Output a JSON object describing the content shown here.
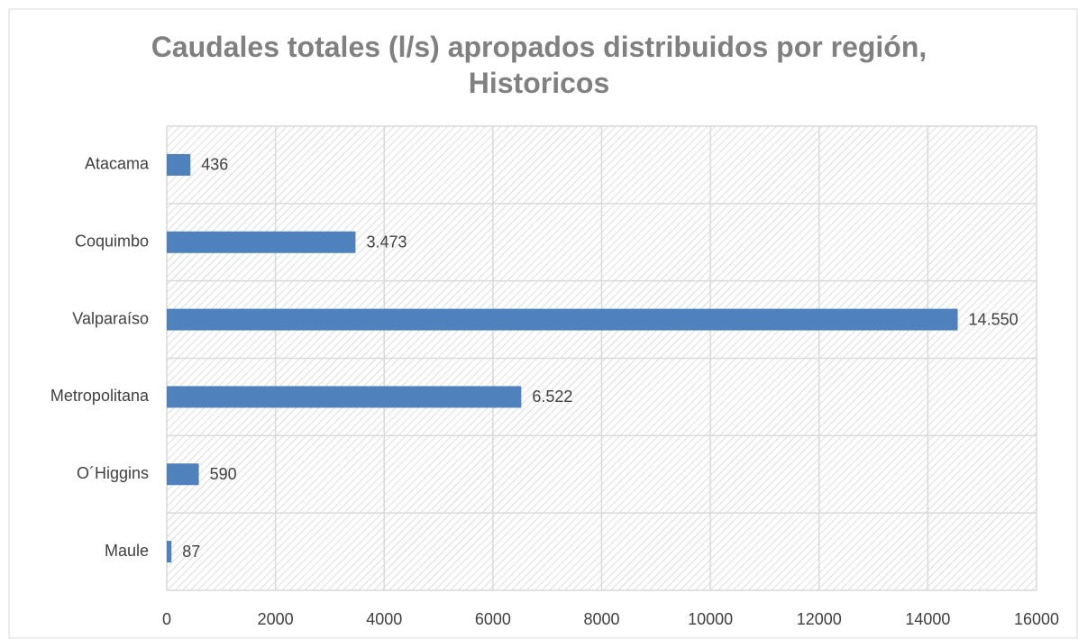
{
  "chart_data": {
    "type": "barh",
    "title": "Caudales totales (l/s) apropados distribuidos por región, Historicos",
    "categories": [
      "Atacama",
      "Coquimbo",
      "Valparaíso",
      "Metropolitana",
      "O´Higgins",
      "Maule"
    ],
    "values": [
      436,
      3473,
      14550,
      6522,
      590,
      87
    ],
    "value_labels": [
      "436",
      "3.473",
      "14.550",
      "6.522",
      "590",
      "87"
    ],
    "color": "#4f81bd",
    "xlim": [
      0,
      16000
    ],
    "xticks": [
      0,
      2000,
      4000,
      6000,
      8000,
      10000,
      12000,
      14000,
      16000
    ],
    "grid": true
  }
}
